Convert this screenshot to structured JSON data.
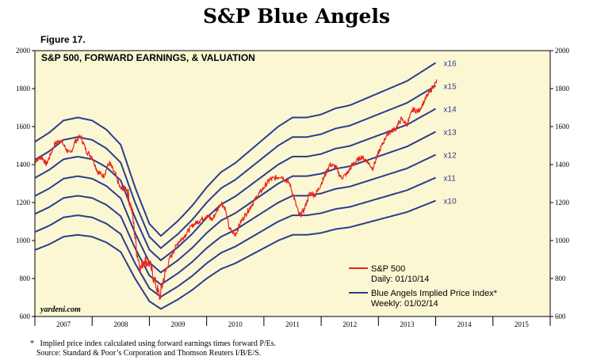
{
  "page": {
    "title": "S&P Blue Angels",
    "figure_label": "Figure 17.",
    "footnote": "Implied price index calculated using forward earnings times forward P/Es.",
    "source": "Source: Standard & Poor’s Corporation and Thomson Reuters I/B/E/S.",
    "footnote_marker": "*"
  },
  "chart_data": {
    "type": "line",
    "title": "S&P 500, FORWARD EARNINGS, & VALUATION",
    "watermark": "yardeni.com",
    "xlabel": "",
    "ylabel": "",
    "ylim": [
      600,
      2000
    ],
    "yticks": [
      600,
      800,
      1000,
      1200,
      1400,
      1600,
      1800,
      2000
    ],
    "xlim": [
      2007.0,
      2016.0
    ],
    "x_categories": [
      "2007",
      "2008",
      "2009",
      "2010",
      "2011",
      "2012",
      "2013",
      "2014",
      "2015"
    ],
    "colors": {
      "blue": "#2b3d8f",
      "red": "#e8231f",
      "background": "#fbf7d3"
    },
    "legend": [
      {
        "label": "S&P 500",
        "sublabel": "Daily: 01/10/14",
        "color": "#e8231f"
      },
      {
        "label": "Blue Angels Implied Price Index*",
        "sublabel": "Weekly: 01/02/14",
        "color": "#2b3d8f"
      }
    ],
    "forward_earnings_x": [
      2007.0,
      2007.25,
      2007.5,
      2007.75,
      2008.0,
      2008.25,
      2008.5,
      2008.75,
      2009.0,
      2009.2,
      2009.5,
      2009.75,
      2010.0,
      2010.25,
      2010.5,
      2010.75,
      2011.0,
      2011.25,
      2011.5,
      2011.75,
      2012.0,
      2012.25,
      2012.5,
      2012.75,
      2013.0,
      2013.25,
      2013.5,
      2013.75,
      2014.0
    ],
    "forward_earnings_y": [
      95,
      98,
      102,
      103,
      102,
      99,
      94,
      80,
      68,
      64,
      69,
      74,
      80,
      85,
      88,
      92,
      96,
      100,
      103,
      103,
      104,
      106,
      107,
      109,
      111,
      113,
      115,
      118,
      121
    ],
    "blue_angels": [
      {
        "multiple": 10,
        "label": "x10"
      },
      {
        "multiple": 11,
        "label": "x11"
      },
      {
        "multiple": 12,
        "label": "x12"
      },
      {
        "multiple": 13,
        "label": "x13"
      },
      {
        "multiple": 14,
        "label": "x14"
      },
      {
        "multiple": 15,
        "label": "x15"
      },
      {
        "multiple": 16,
        "label": "x16"
      }
    ],
    "sp500": {
      "name": "S&P 500",
      "x": [
        2007.0,
        2007.12,
        2007.2,
        2007.35,
        2007.45,
        2007.55,
        2007.62,
        2007.7,
        2007.8,
        2007.9,
        2008.0,
        2008.1,
        2008.2,
        2008.3,
        2008.4,
        2008.5,
        2008.6,
        2008.7,
        2008.78,
        2008.85,
        2008.9,
        2009.0,
        2009.08,
        2009.18,
        2009.25,
        2009.35,
        2009.5,
        2009.6,
        2009.75,
        2009.9,
        2010.0,
        2010.1,
        2010.25,
        2010.32,
        2010.4,
        2010.5,
        2010.6,
        2010.75,
        2010.9,
        2011.0,
        2011.1,
        2011.2,
        2011.3,
        2011.45,
        2011.55,
        2011.62,
        2011.7,
        2011.8,
        2011.9,
        2012.0,
        2012.15,
        2012.25,
        2012.35,
        2012.45,
        2012.55,
        2012.7,
        2012.8,
        2012.9,
        2013.0,
        2013.15,
        2013.3,
        2013.4,
        2013.5,
        2013.6,
        2013.7,
        2013.85,
        2013.95,
        2014.03
      ],
      "y": [
        1420,
        1440,
        1400,
        1510,
        1530,
        1480,
        1455,
        1520,
        1550,
        1470,
        1440,
        1360,
        1340,
        1410,
        1350,
        1270,
        1280,
        1150,
        940,
        850,
        900,
        880,
        800,
        700,
        800,
        900,
        990,
        1020,
        1080,
        1110,
        1130,
        1110,
        1200,
        1170,
        1060,
        1030,
        1100,
        1170,
        1240,
        1280,
        1320,
        1330,
        1340,
        1300,
        1200,
        1130,
        1160,
        1250,
        1240,
        1300,
        1400,
        1390,
        1330,
        1350,
        1400,
        1440,
        1420,
        1380,
        1460,
        1560,
        1590,
        1640,
        1610,
        1690,
        1680,
        1760,
        1810,
        1840
      ]
    }
  }
}
